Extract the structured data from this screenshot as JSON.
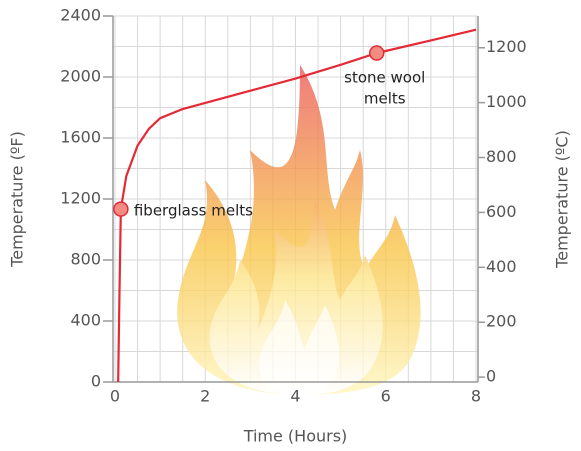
{
  "chart_data": {
    "type": "line",
    "x": [
      0.07,
      0.1,
      0.13,
      0.25,
      0.5,
      0.75,
      1,
      1.5,
      2,
      3,
      4,
      5,
      5.8,
      7,
      8
    ],
    "series": [
      {
        "color": "#e32a36",
        "values": [
          0,
          600,
          1134,
          1350,
          1550,
          1660,
          1730,
          1790,
          1830,
          1910,
          1990,
          2080,
          2157,
          2240,
          2310
        ]
      }
    ],
    "xlabel": "Time (Hours)",
    "ylabel": "Temperature  (ºF)",
    "y2label": "Temperature  (ºC)",
    "xlim": [
      0,
      8
    ],
    "xticks": [
      0,
      2,
      4,
      6,
      8
    ],
    "ylim": [
      0,
      2400
    ],
    "yticks": [
      0,
      400,
      800,
      1200,
      1600,
      2000,
      2400
    ],
    "y2lim": [
      -17.8,
      1315.6
    ],
    "y2ticks": [
      0,
      200,
      400,
      600,
      800,
      1000,
      1200
    ],
    "grid": true,
    "annotations": [
      {
        "text": "fiberglass melts",
        "x": 0.13,
        "y": 1134
      },
      {
        "text": [
          "stone wool",
          "melts"
        ],
        "x": 5.8,
        "y": 2157
      }
    ]
  }
}
